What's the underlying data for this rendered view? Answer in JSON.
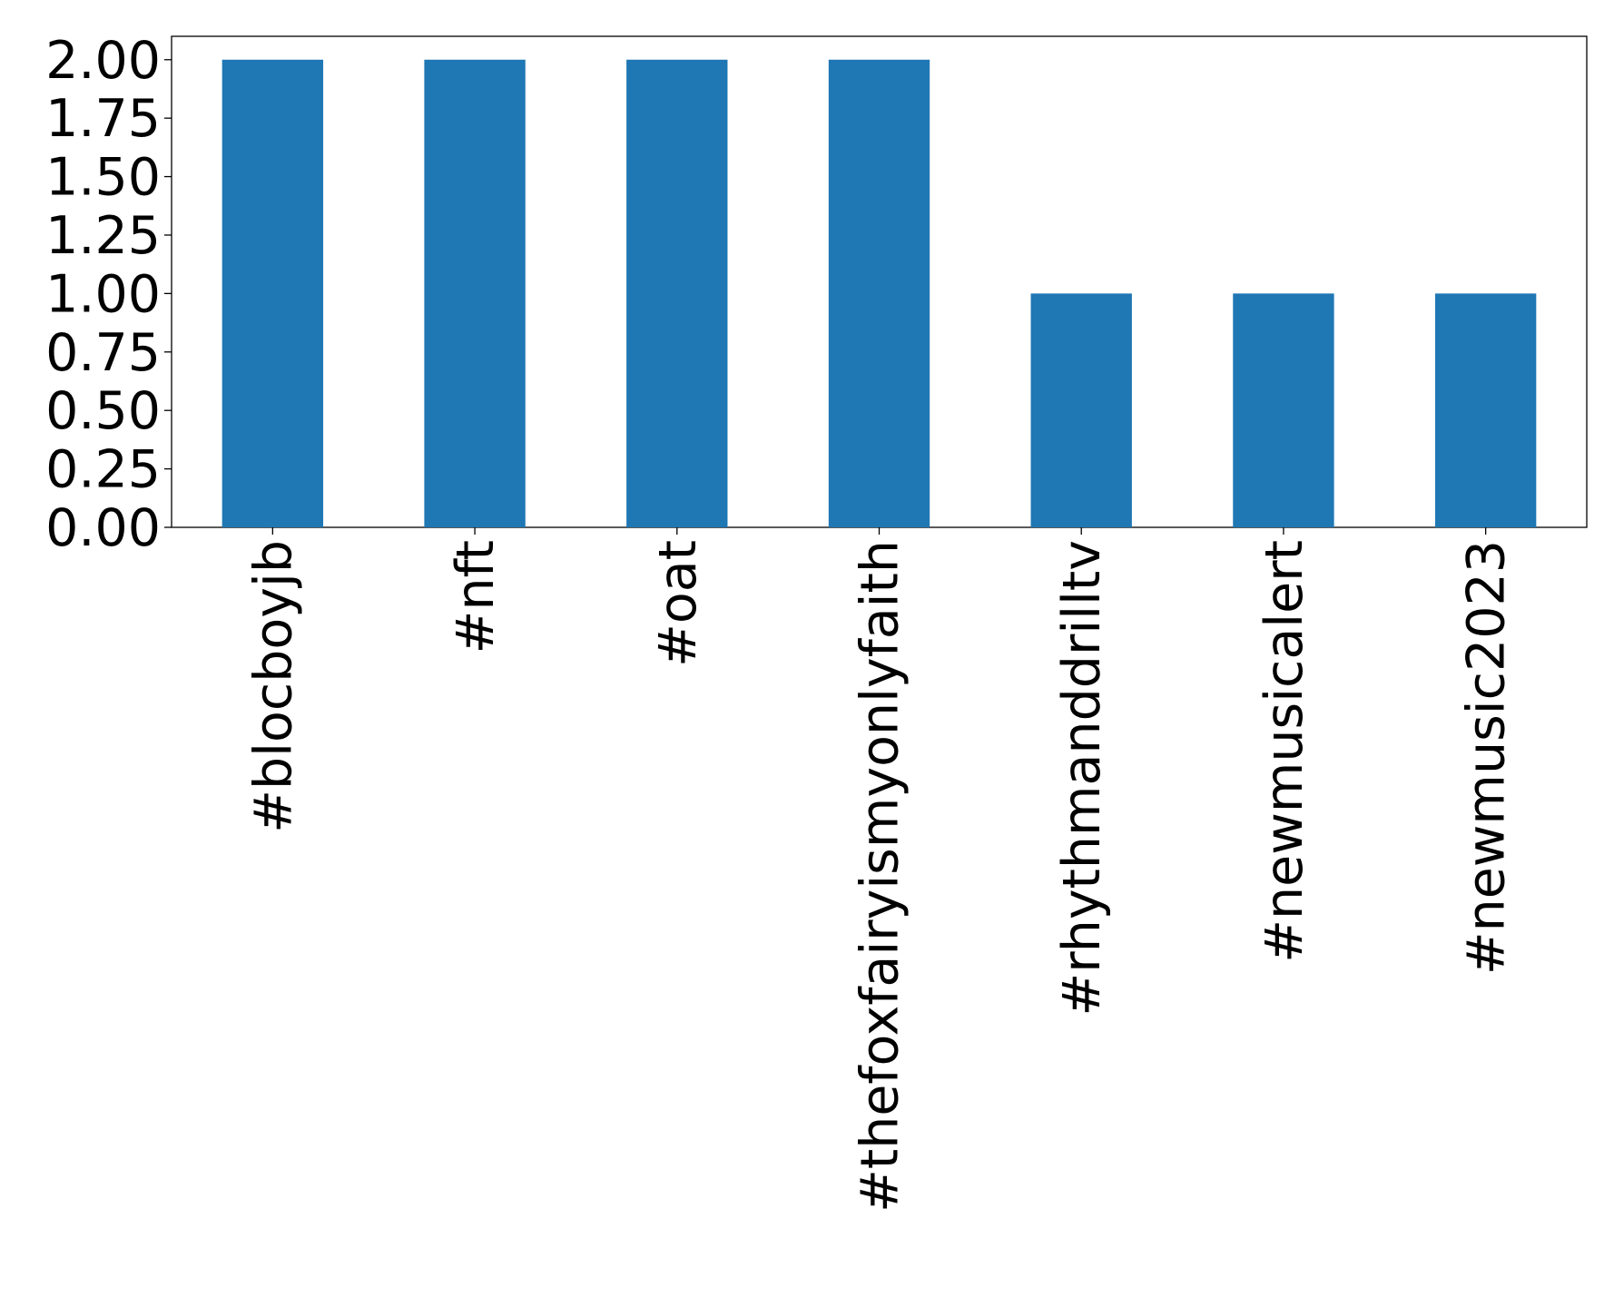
{
  "chart_data": {
    "type": "bar",
    "categories": [
      "#blocboyjb",
      "#nft",
      "#oat",
      "#thefoxfairyismyonlyfaith",
      "#rhythmanddrilltv",
      "#newmusicalert",
      "#newmusic2023"
    ],
    "values": [
      2,
      2,
      2,
      2,
      1,
      1,
      1
    ],
    "color": "#1f77b4",
    "ylim": [
      0,
      2.1
    ],
    "yticks": [
      {
        "value": 0,
        "label": "0.00"
      },
      {
        "value": 0.25,
        "label": "0.25"
      },
      {
        "value": 0.5,
        "label": "0.50"
      },
      {
        "value": 0.75,
        "label": "0.75"
      },
      {
        "value": 1,
        "label": "1.00"
      },
      {
        "value": 1.25,
        "label": "1.25"
      },
      {
        "value": 1.5,
        "label": "1.50"
      },
      {
        "value": 1.75,
        "label": "1.75"
      },
      {
        "value": 2,
        "label": "2.00"
      }
    ],
    "grid": false
  }
}
